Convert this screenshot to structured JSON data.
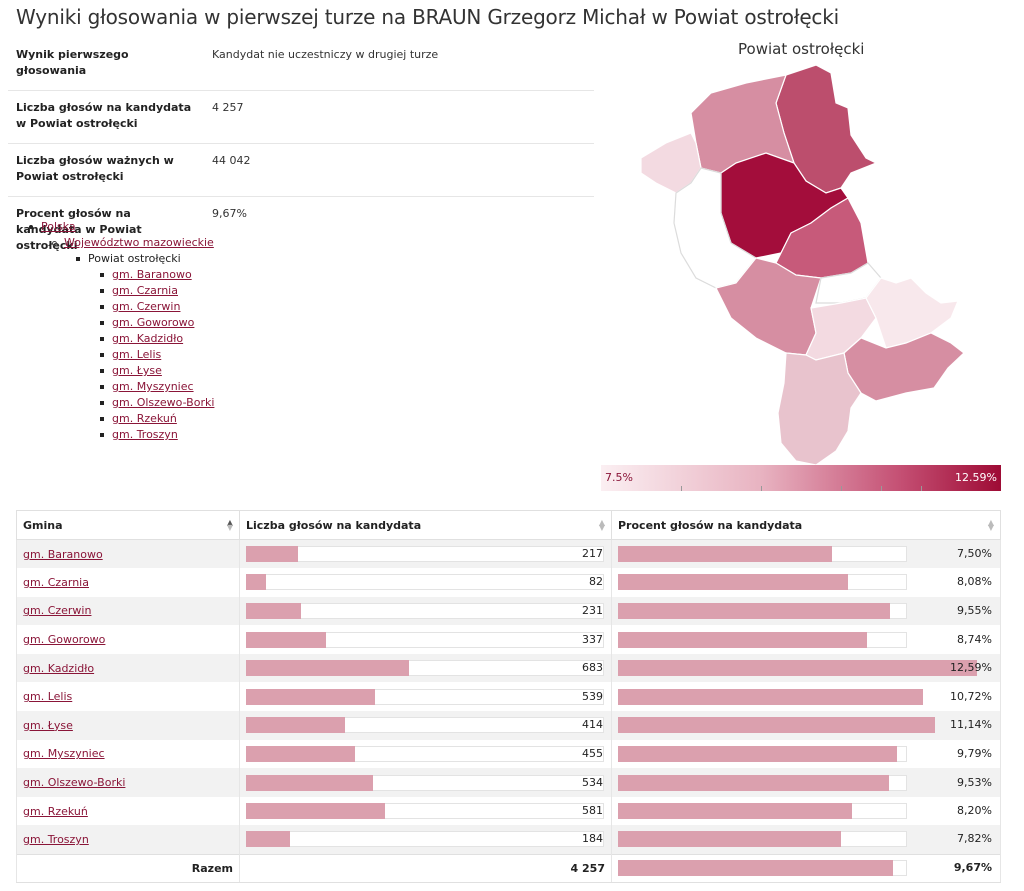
{
  "title": "Wyniki głosowania w pierwszej turze na BRAUN Grzegorz Michał w Powiat ostrołęcki",
  "summary": [
    {
      "label": "Wynik pierwszego głosowania",
      "value": "Kandydat nie uczestniczy w drugiej turze"
    },
    {
      "label": "Liczba głosów na kandydata w Powiat ostrołęcki",
      "value": "4 257"
    },
    {
      "label": "Liczba głosów ważnych w Powiat ostrołęcki",
      "value": "44 042"
    },
    {
      "label": "Procent głosów na kandydata w Powiat ostrołęcki",
      "value": "9,67%"
    }
  ],
  "tree": {
    "country": "Polska",
    "voivodeship": "Województwo mazowieckie",
    "county": "Powiat ostrołęcki",
    "gminas": [
      "gm. Baranowo",
      "gm. Czarnia",
      "gm. Czerwin",
      "gm. Goworowo",
      "gm. Kadzidło",
      "gm. Lelis",
      "gm. Łyse",
      "gm. Myszyniec",
      "gm. Olszewo-Borki",
      "gm. Rzekuń",
      "gm. Troszyn"
    ]
  },
  "map": {
    "title": "Powiat ostrołęcki",
    "legend_min": "7.5%",
    "legend_max": "12.59%",
    "colors": {
      "low": "#fbeff2",
      "high": "#9e0b35"
    }
  },
  "table": {
    "headers": {
      "gmina": "Gmina",
      "votes": "Liczba głosów na kandydata",
      "percent": "Procent głosów na kandydata"
    },
    "rows": [
      {
        "gmina": "gm. Baranowo",
        "votes": 217,
        "votes_label": "217",
        "percent": 7.5,
        "percent_label": "7,50%"
      },
      {
        "gmina": "gm. Czarnia",
        "votes": 82,
        "votes_label": "82",
        "percent": 8.08,
        "percent_label": "8,08%"
      },
      {
        "gmina": "gm. Czerwin",
        "votes": 231,
        "votes_label": "231",
        "percent": 9.55,
        "percent_label": "9,55%"
      },
      {
        "gmina": "gm. Goworowo",
        "votes": 337,
        "votes_label": "337",
        "percent": 8.74,
        "percent_label": "8,74%"
      },
      {
        "gmina": "gm. Kadzidło",
        "votes": 683,
        "votes_label": "683",
        "percent": 12.59,
        "percent_label": "12,59%"
      },
      {
        "gmina": "gm. Lelis",
        "votes": 539,
        "votes_label": "539",
        "percent": 10.72,
        "percent_label": "10,72%"
      },
      {
        "gmina": "gm. Łyse",
        "votes": 414,
        "votes_label": "414",
        "percent": 11.14,
        "percent_label": "11,14%"
      },
      {
        "gmina": "gm. Myszyniec",
        "votes": 455,
        "votes_label": "455",
        "percent": 9.79,
        "percent_label": "9,79%"
      },
      {
        "gmina": "gm. Olszewo-Borki",
        "votes": 534,
        "votes_label": "534",
        "percent": 9.53,
        "percent_label": "9,53%"
      },
      {
        "gmina": "gm. Rzekuń",
        "votes": 581,
        "votes_label": "581",
        "percent": 8.2,
        "percent_label": "8,20%"
      },
      {
        "gmina": "gm. Troszyn",
        "votes": 184,
        "votes_label": "184",
        "percent": 7.82,
        "percent_label": "7,82%"
      }
    ],
    "total": {
      "label": "Razem",
      "votes": 4257,
      "votes_label": "4 257",
      "percent": 9.67,
      "percent_label": "9,67%"
    }
  }
}
